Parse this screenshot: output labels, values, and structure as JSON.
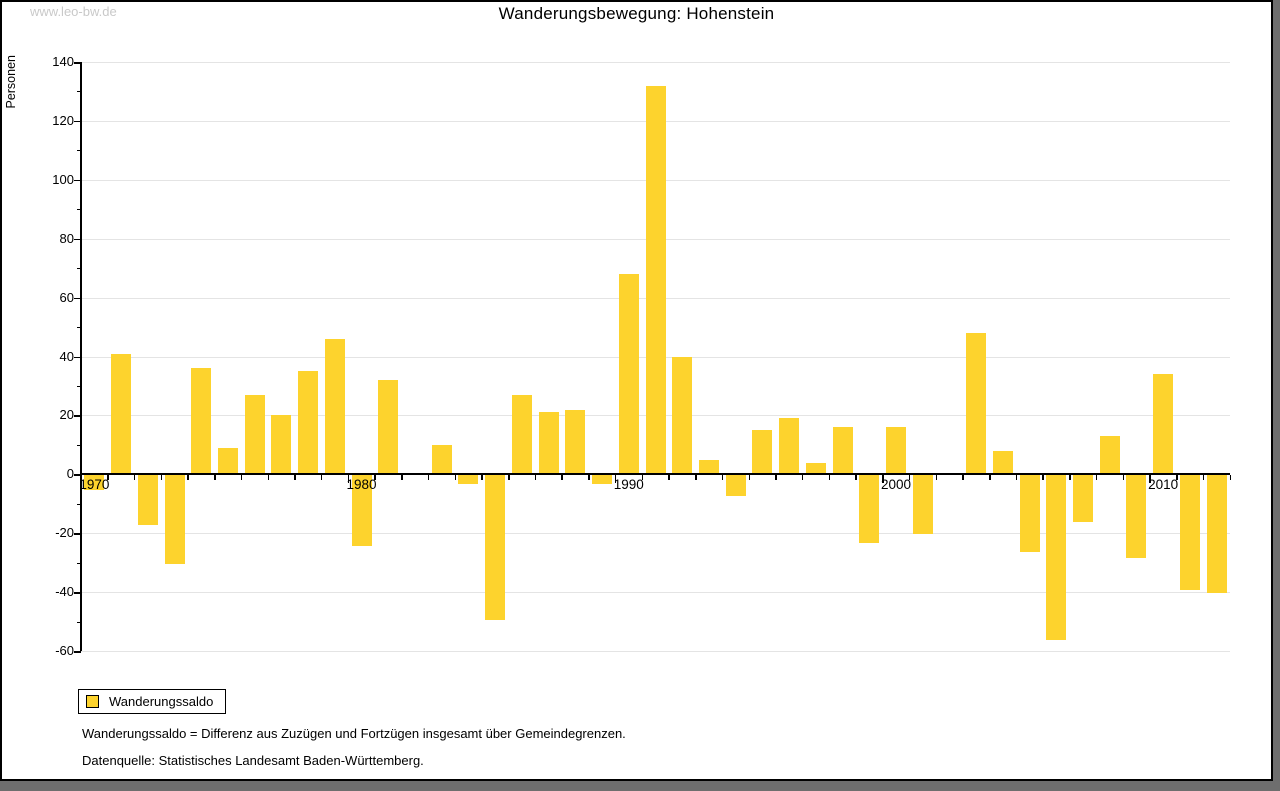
{
  "watermark": "www.leo-bw.de",
  "title": "Wanderungsbewegung: Hohenstein",
  "y_axis_label": "Personen",
  "legend": {
    "label": "Wanderungssaldo",
    "swatch_color": "#fdd32d"
  },
  "footnotes": [
    "Wanderungssaldo = Differenz aus Zuzügen und Fortzügen insgesamt über Gemeindegrenzen.",
    "Datenquelle: Statistisches Landesamt Baden-Württemberg."
  ],
  "chart_data": {
    "type": "bar",
    "title": "Wanderungsbewegung: Hohenstein",
    "ylabel": "Personen",
    "series_name": "Wanderungssaldo",
    "x": [
      1970,
      1971,
      1972,
      1973,
      1974,
      1975,
      1976,
      1977,
      1978,
      1979,
      1980,
      1981,
      1982,
      1983,
      1984,
      1985,
      1986,
      1987,
      1988,
      1989,
      1990,
      1991,
      1992,
      1993,
      1994,
      1995,
      1996,
      1997,
      1998,
      1999,
      2000,
      2001,
      2002,
      2003,
      2004,
      2005,
      2006,
      2007,
      2008,
      2009,
      2010,
      2011,
      2012
    ],
    "values": [
      -5,
      41,
      -17,
      -30,
      36,
      9,
      27,
      20,
      35,
      46,
      -24,
      32,
      0,
      10,
      -3,
      -49,
      27,
      21,
      22,
      -3,
      68,
      132,
      40,
      5,
      -7,
      15,
      19,
      4,
      16,
      -23,
      16,
      -20,
      0,
      48,
      8,
      -26,
      -56,
      -16,
      13,
      -28,
      34,
      -39,
      -40
    ],
    "ylim": [
      -60,
      140
    ],
    "y_major_step": 20,
    "y_minor_step": 10,
    "x_tick_labels": [
      1970,
      1980,
      1990,
      2000,
      2010
    ],
    "bar_color": "#fdd32d",
    "grid_color": "#e4e4e4",
    "grid": true,
    "legend_position": "bottom-left"
  }
}
